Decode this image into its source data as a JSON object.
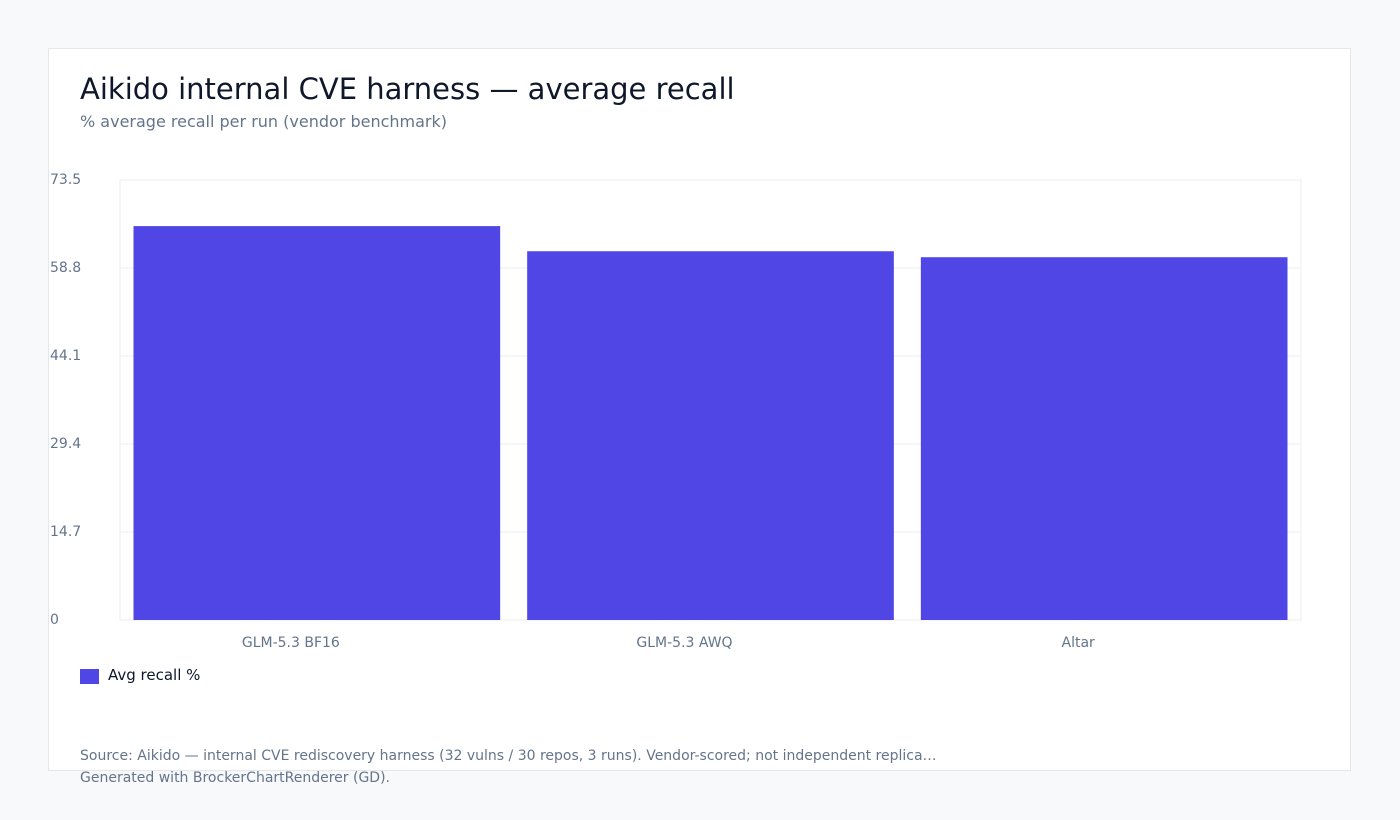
{
  "chart_data": {
    "type": "bar",
    "title": "Aikido internal CVE harness — average recall",
    "subtitle": "% average recall per run (vendor benchmark)",
    "categories": [
      "GLM-5.3 BF16",
      "GLM-5.3 AWQ",
      "Altar"
    ],
    "series": [
      {
        "name": "Avg recall %",
        "color": "#4f46e5",
        "values": [
          65.8,
          61.6,
          60.6
        ]
      }
    ],
    "yticks": [
      "0",
      "14.7",
      "29.4",
      "44.1",
      "58.8",
      "73.5"
    ],
    "ylim": [
      0,
      73.5
    ],
    "grid": true,
    "legend_position": "bottom-left"
  },
  "footer": {
    "source": "Source: Aikido — internal CVE rediscovery harness (32 vulns / 30 repos, 3 runs). Vendor-scored; not independent replica…",
    "generated": "Generated with BrockerChartRenderer (GD)."
  }
}
